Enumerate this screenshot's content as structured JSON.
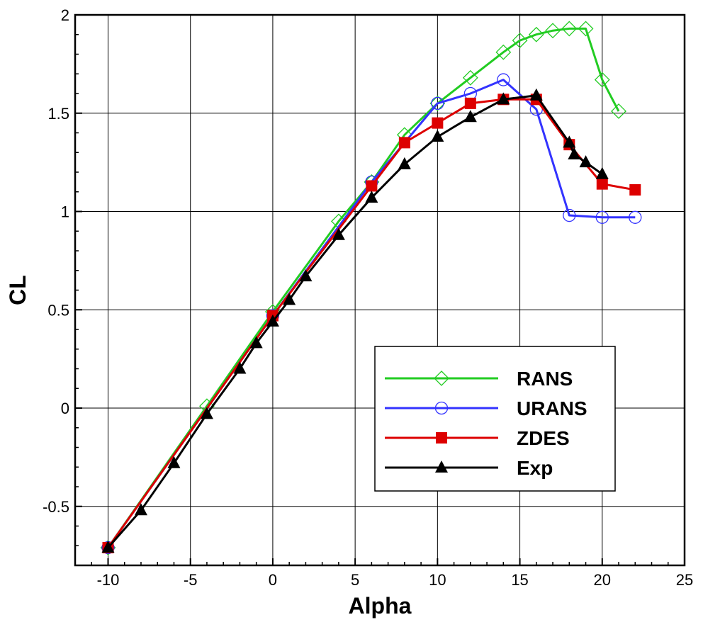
{
  "chart_data": {
    "type": "line",
    "title": "",
    "xlabel": "Alpha",
    "ylabel": "CL",
    "xlim": [
      -12,
      25
    ],
    "ylim": [
      -0.8,
      2
    ],
    "xticks": [
      -10,
      -5,
      0,
      5,
      10,
      15,
      20,
      25
    ],
    "yticks": [
      -0.5,
      0,
      0.5,
      1,
      1.5,
      2
    ],
    "xtick_labels": [
      "-10",
      "-5",
      "0",
      "5",
      "10",
      "15",
      "20",
      "25"
    ],
    "ytick_labels": [
      "-0.5",
      "0",
      "0.5",
      "1",
      "1.5",
      "2"
    ],
    "grid": true,
    "legend_position": "bottom-right",
    "series": [
      {
        "name": "RANS",
        "color": "#22cc22",
        "marker": "diamond-open",
        "x": [
          -10,
          -4,
          0,
          4,
          6,
          8,
          10,
          12,
          14,
          15,
          16,
          17,
          18,
          19,
          20,
          21
        ],
        "y": [
          -0.71,
          0.01,
          0.49,
          0.95,
          1.15,
          1.39,
          1.55,
          1.68,
          1.81,
          1.87,
          1.9,
          1.92,
          1.93,
          1.93,
          1.67,
          1.51
        ]
      },
      {
        "name": "URANS",
        "color": "#3333ff",
        "marker": "circle-open",
        "x": [
          -10,
          0,
          6,
          10,
          12,
          14,
          16,
          18,
          20,
          22
        ],
        "y": [
          -0.71,
          0.47,
          1.15,
          1.55,
          1.6,
          1.67,
          1.52,
          0.98,
          0.97,
          0.97
        ]
      },
      {
        "name": "ZDES",
        "color": "#dd0000",
        "marker": "square-filled",
        "x": [
          -10,
          0,
          6,
          8,
          10,
          12,
          14,
          16,
          18,
          20,
          22
        ],
        "y": [
          -0.71,
          0.47,
          1.13,
          1.35,
          1.45,
          1.55,
          1.57,
          1.57,
          1.34,
          1.14,
          1.11
        ]
      },
      {
        "name": "Exp",
        "color": "#000000",
        "marker": "triangle-filled",
        "x": [
          -10,
          -8,
          -6,
          -4,
          -2,
          -1,
          0,
          1,
          2,
          4,
          6,
          8,
          10,
          12,
          14,
          16,
          18,
          18.3,
          19,
          20
        ],
        "y": [
          -0.71,
          -0.52,
          -0.28,
          -0.03,
          0.2,
          0.33,
          0.44,
          0.55,
          0.67,
          0.88,
          1.07,
          1.24,
          1.38,
          1.48,
          1.57,
          1.59,
          1.35,
          1.29,
          1.25,
          1.19
        ]
      }
    ]
  }
}
